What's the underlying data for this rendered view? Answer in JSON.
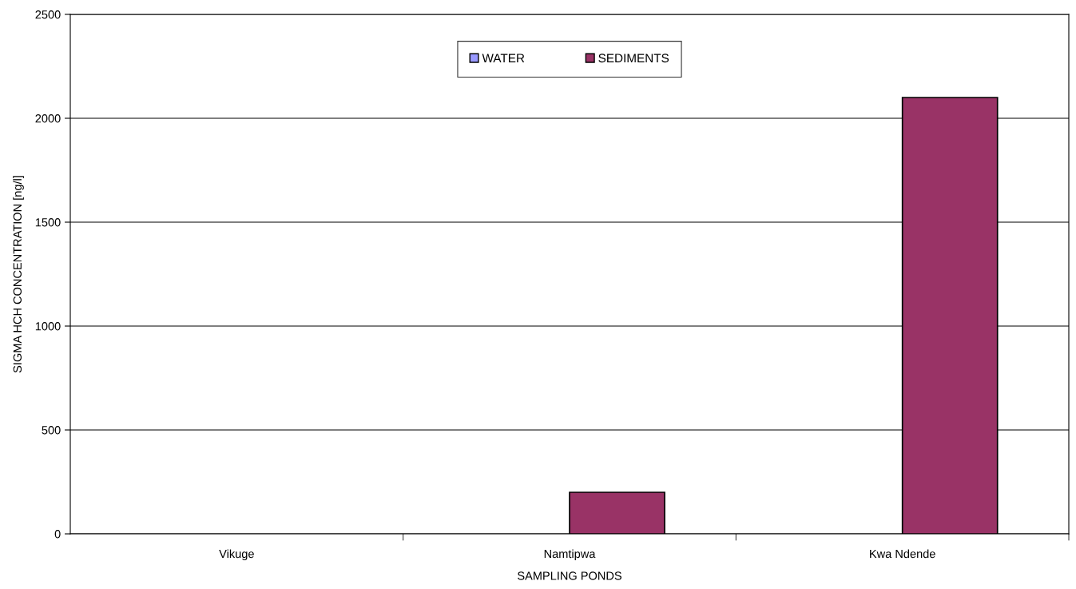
{
  "chart_data": {
    "type": "bar",
    "xlabel": "SAMPLING PONDS",
    "ylabel": "SIGMA HCH CONCENTRATION [ng/l]",
    "categories": [
      "Vikuge",
      "Namtipwa",
      "Kwa Ndende"
    ],
    "series": [
      {
        "name": "WATER",
        "color": "#9999ff",
        "values": [
          null,
          null,
          null
        ]
      },
      {
        "name": "SEDIMENTS",
        "color": "#993366",
        "values": [
          null,
          200,
          2100
        ]
      }
    ],
    "ylim": [
      0,
      2500
    ],
    "yticks": [
      0,
      500,
      1000,
      1500,
      2000,
      2500
    ],
    "grid": "y",
    "legend": "top"
  }
}
